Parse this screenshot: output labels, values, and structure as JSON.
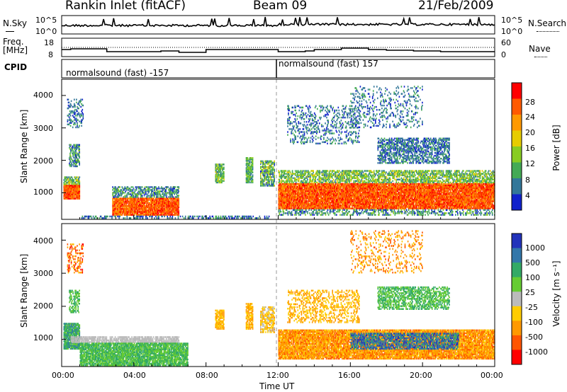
{
  "header": {
    "title": "Rankin Inlet (fitACF)",
    "beam": "Beam 09",
    "date": "21/Feb/2009"
  },
  "top_panels": {
    "nsky_label": "N.Sky",
    "nsky_ticks": [
      "10^5",
      "10^0"
    ],
    "nsearch_label": "N.Search",
    "nsearch_ticks": [
      "10^5",
      "10^0"
    ],
    "freq_label": "Freq.",
    "freq_unit": "[MHz]",
    "freq_ticks": [
      "18",
      "8"
    ],
    "nave_label": "Nave",
    "nave_ticks": [
      "60",
      "0"
    ],
    "cpid_label": "CPID",
    "cpid_segments": [
      "normalsound (fast) -157",
      "normalsound (fast) 157"
    ]
  },
  "panels": {
    "ylabel": "Slant Range [km]",
    "yticks": [
      "4000",
      "3000",
      "2000",
      "1000"
    ],
    "xticks": [
      "00:00",
      "04:00",
      "08:00",
      "12:00",
      "16:00",
      "20:00",
      "00:00"
    ],
    "xlabel": "Time UT"
  },
  "power_scale": {
    "label": "Power [dB]",
    "ticks": [
      "28",
      "24",
      "20",
      "16",
      "12",
      "8",
      "4"
    ],
    "colors": [
      "#ff0000",
      "#ff5a00",
      "#ff9900",
      "#e6cc00",
      "#88cc22",
      "#44aa55",
      "#337799",
      "#1122cc"
    ]
  },
  "velocity_scale": {
    "label": "Velocity [m s⁻¹]",
    "ticks": [
      "1000",
      "500",
      "100",
      "25",
      "-25",
      "-100",
      "-500",
      "-1000"
    ],
    "colors": [
      "#2233bb",
      "#3377aa",
      "#33aa66",
      "#66cc33",
      "#bbbbbb",
      "#ffcc00",
      "#ff9900",
      "#ff5500",
      "#ff0000"
    ]
  },
  "chart_data": [
    {
      "type": "heatmap",
      "title": "Power",
      "xlabel": "Time UT",
      "ylabel": "Slant Range [km]",
      "xlim": [
        "00:00",
        "24:00"
      ],
      "ylim": [
        180,
        4500
      ],
      "colorbar_label": "Power [dB]",
      "colorbar_ticks": [
        28,
        24,
        20,
        16,
        12,
        8,
        4
      ],
      "features": [
        {
          "time": "00:00-01:00",
          "range_km": [
            800,
            1200
          ],
          "power_db": 26
        },
        {
          "time": "03:00-06:30",
          "range_km": [
            300,
            800
          ],
          "power_db": 24
        },
        {
          "time": "12:00-24:00",
          "range_km": [
            500,
            1300
          ],
          "power_db": 26
        },
        {
          "time": "18:00-22:00",
          "range_km": [
            1800,
            2600
          ],
          "power_db": 10
        }
      ]
    },
    {
      "type": "heatmap",
      "title": "Velocity",
      "xlabel": "Time UT",
      "ylabel": "Slant Range [km]",
      "xlim": [
        "00:00",
        "24:00"
      ],
      "ylim": [
        180,
        4500
      ],
      "colorbar_label": "Velocity [m s⁻¹]",
      "colorbar_ticks": [
        1000,
        500,
        100,
        25,
        -25,
        -100,
        -500,
        -1000
      ],
      "features": [
        {
          "time": "00:00-07:00",
          "range_km": [
            300,
            1500
          ],
          "velocity": 100
        },
        {
          "time": "12:00-24:00",
          "range_km": [
            500,
            1300
          ],
          "velocity": -300
        },
        {
          "time": "16:00-22:00",
          "range_km": [
            700,
            1200
          ],
          "velocity": 600
        }
      ]
    }
  ]
}
